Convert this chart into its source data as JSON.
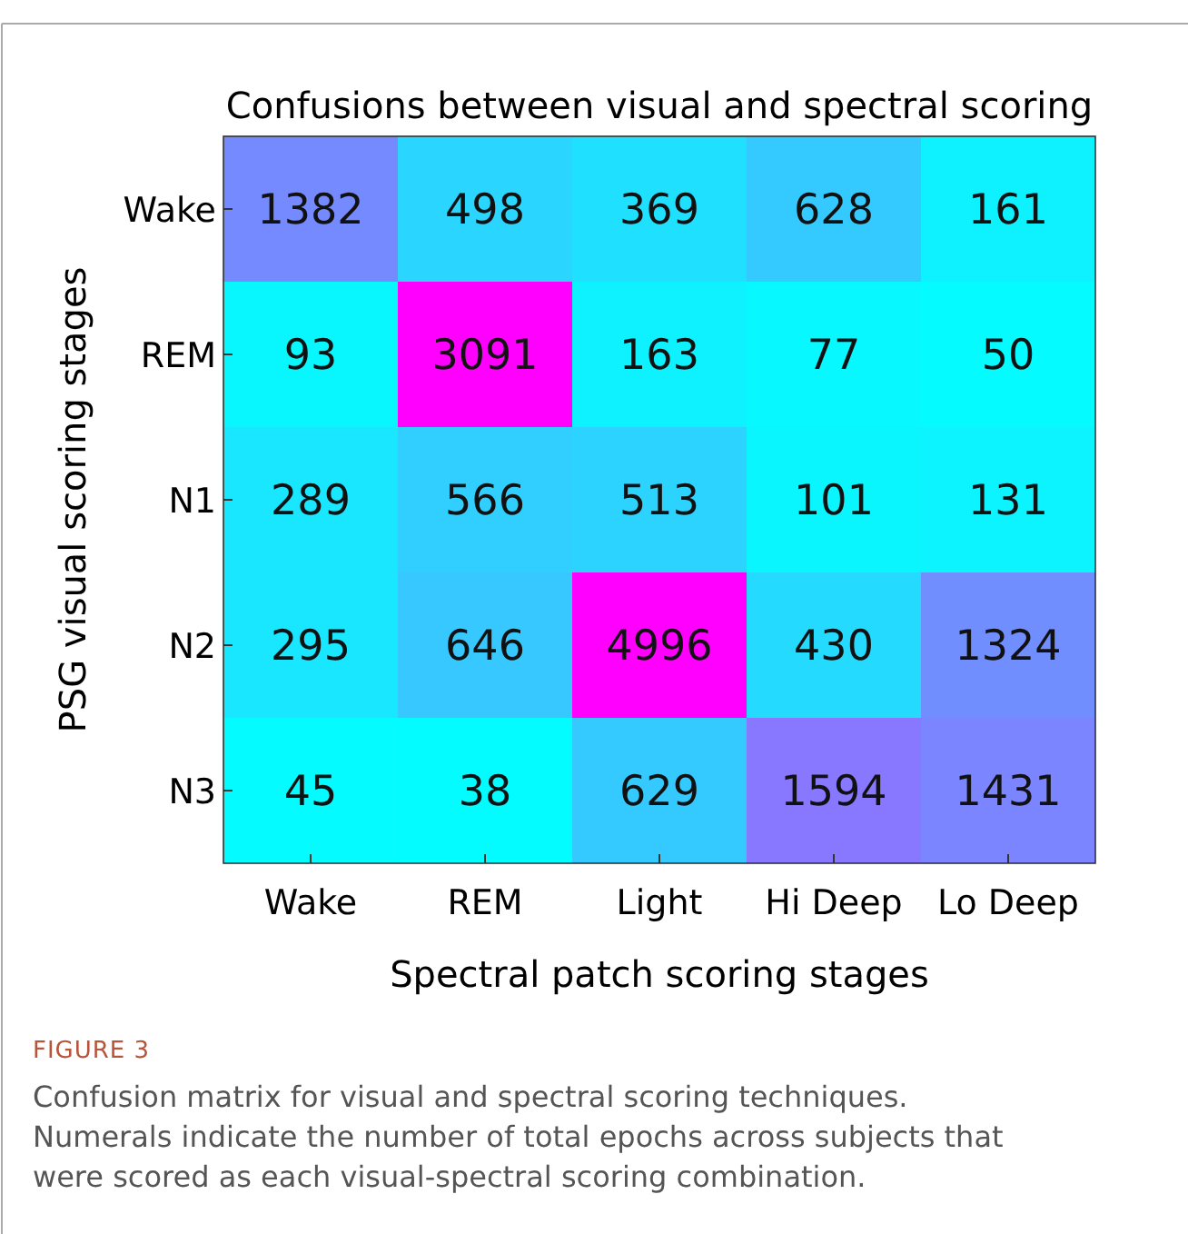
{
  "chart_data": {
    "type": "heatmap",
    "title": "Confusions between visual and spectral scoring",
    "xlabel": "Spectral patch scoring stages",
    "ylabel": "PSG visual scoring stages",
    "categories": [
      "Wake",
      "REM",
      "Light",
      "Hi Deep",
      "Lo Deep"
    ],
    "y_categories": [
      "Wake",
      "REM",
      "N1",
      "N2",
      "N3"
    ],
    "cells": [
      [
        1382,
        498,
        369,
        628,
        161
      ],
      [
        93,
        3091,
        163,
        77,
        50
      ],
      [
        289,
        566,
        513,
        101,
        131
      ],
      [
        295,
        646,
        4996,
        430,
        1324
      ],
      [
        45,
        38,
        629,
        1594,
        1431
      ]
    ],
    "data_labels": true,
    "annotations": [
      "FIGURE 3",
      "Confusion matrix for visual and spectral scoring techniques. Numerals indicate the number of total epochs across subjects that were scored as each visual-spectral scoring combination."
    ]
  }
}
